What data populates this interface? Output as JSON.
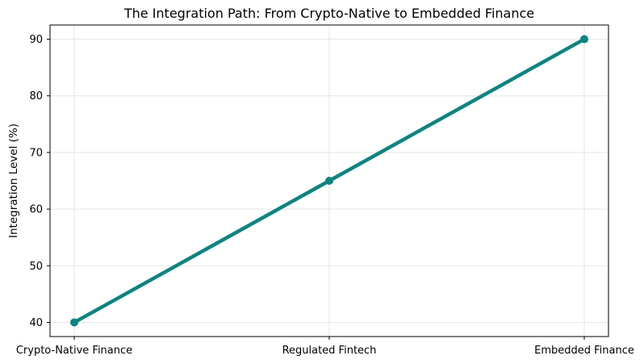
{
  "chart_data": {
    "type": "line",
    "title": "The Integration Path: From Crypto-Native to Embedded Finance",
    "xlabel": "",
    "ylabel": "Integration Level (%)",
    "categories": [
      "Crypto-Native Finance",
      "Regulated Fintech",
      "Embedded Finance"
    ],
    "series": [
      {
        "name": "Integration Level",
        "values": [
          40,
          65,
          90
        ]
      }
    ],
    "yticks": [
      40,
      50,
      60,
      70,
      80,
      90
    ],
    "ylim": [
      37.5,
      92.5
    ],
    "grid": true,
    "legend": false,
    "marker": "circle",
    "colors": {
      "line": "#0d8481",
      "marker": "#0d8481",
      "grid": "#e5e5e5",
      "spine": "#000000",
      "text": "#000000",
      "background": "#ffffff"
    }
  }
}
